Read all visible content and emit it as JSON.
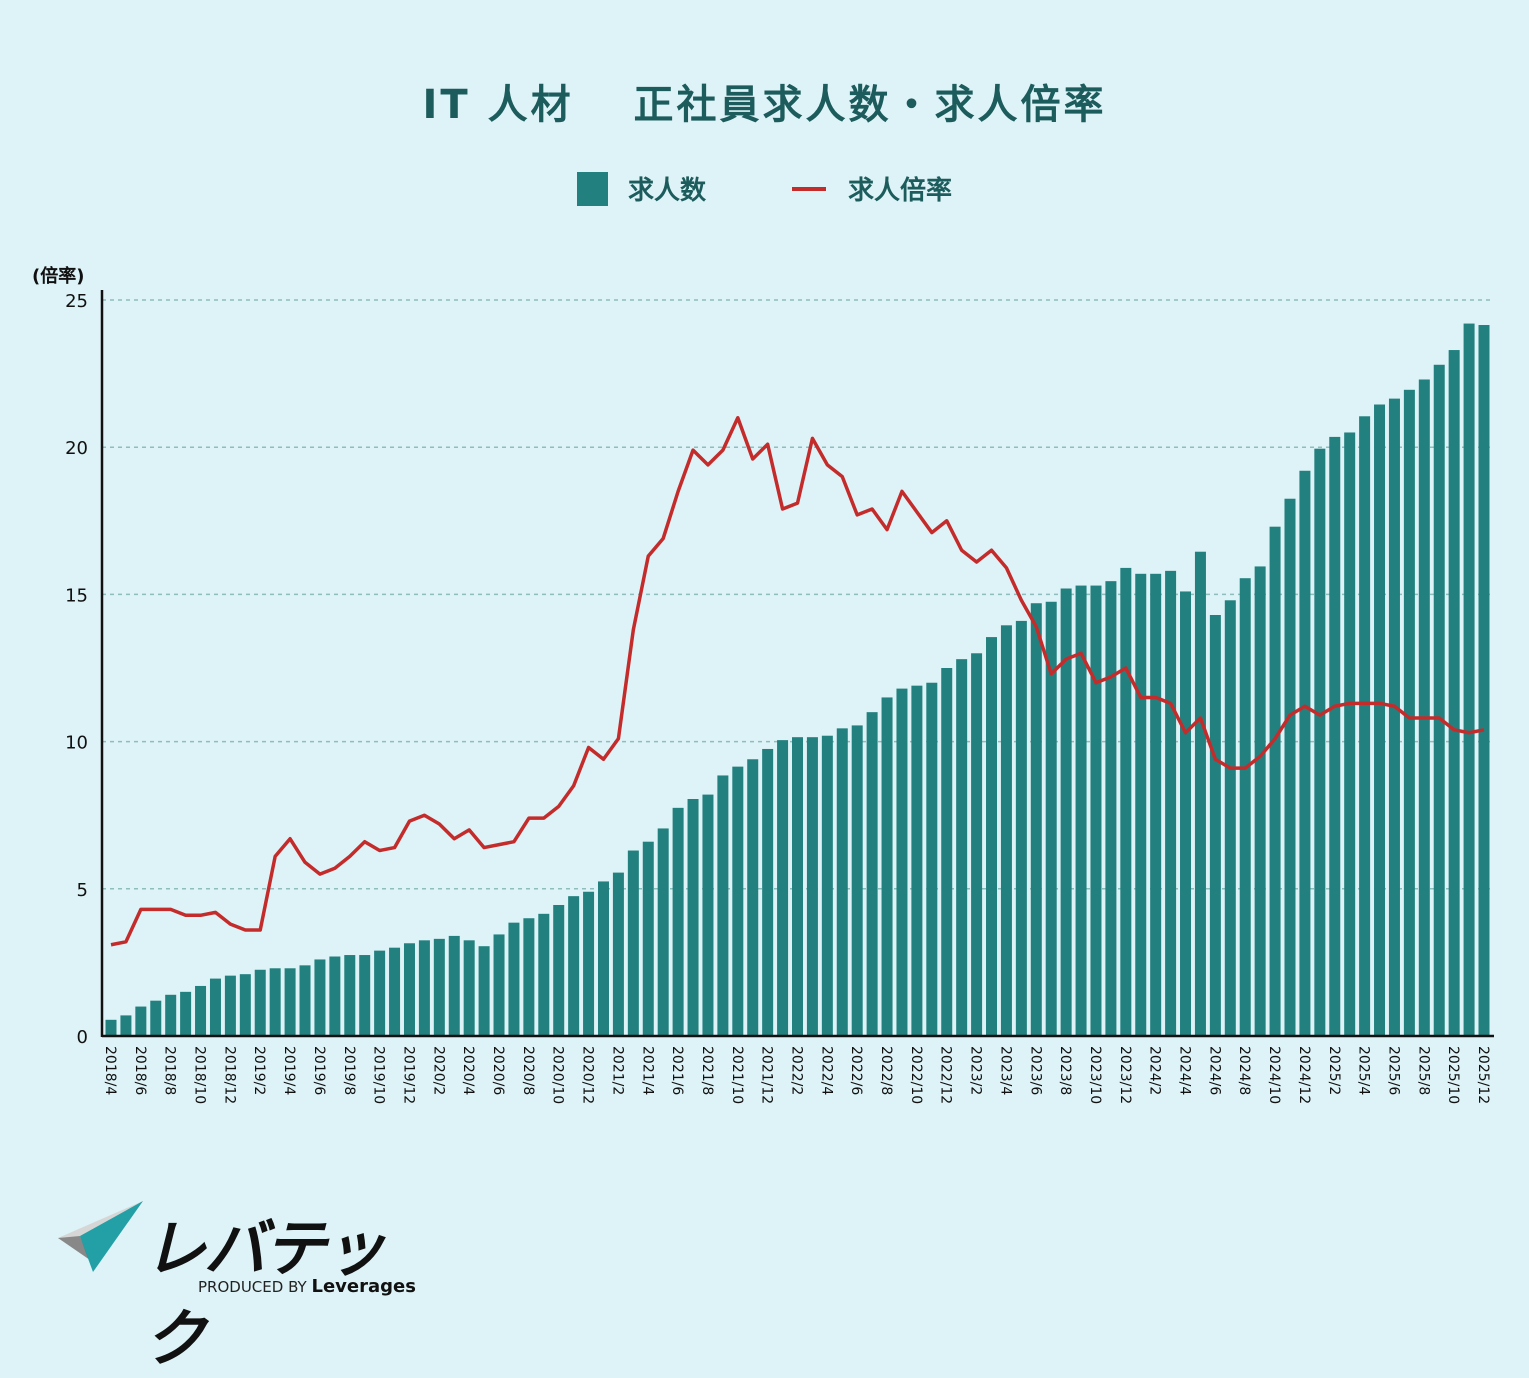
{
  "title": "IT 人材　 正社員求人数・求人倍率",
  "legend": {
    "bar_label": "求人数",
    "line_label": "求人倍率"
  },
  "axis": {
    "unit_label": "(倍率)"
  },
  "colors": {
    "background": "#def3f7",
    "bar": "#22807f",
    "line": "#c42c2c",
    "title": "#1d5c5c",
    "grid": "#8fbcbc"
  },
  "logo": {
    "brand": "レバテック",
    "produced_by": "PRODUCED BY",
    "company": "Leverages"
  },
  "chart_data": {
    "type": "bar+line",
    "title": "IT 人材　正社員求人数・求人倍率",
    "xlabel": "",
    "ylabel": "(倍率)",
    "ylim": [
      0,
      25
    ],
    "yticks": [
      0,
      5,
      10,
      15,
      20,
      25
    ],
    "grid": "horizontal dashed",
    "legend_position": "top-center",
    "tick_labels": [
      "2018/4",
      "2018/6",
      "2018/8",
      "2018/10",
      "2018/12",
      "2019/2",
      "2019/4",
      "2019/6",
      "2019/8",
      "2019/10",
      "2019/12",
      "2020/2",
      "2020/4",
      "2020/6",
      "2020/8",
      "2020/10",
      "2020/12",
      "2021/2",
      "2021/4",
      "2021/6",
      "2021/8",
      "2021/10",
      "2021/12",
      "2022/2",
      "2022/4",
      "2022/6",
      "2022/8",
      "2022/10",
      "2022/12",
      "2023/2",
      "2023/4",
      "2023/6",
      "2023/8",
      "2023/10",
      "2023/12",
      "2024/2",
      "2024/4",
      "2024/6",
      "2024/8",
      "2024/10",
      "2024/12",
      "2025/2",
      "2025/4",
      "2025/6",
      "2025/8",
      "2025/10",
      "2025/12"
    ],
    "categories": [
      "2018/4",
      "2018/5",
      "2018/6",
      "2018/7",
      "2018/8",
      "2018/9",
      "2018/10",
      "2018/11",
      "2018/12",
      "2019/1",
      "2019/2",
      "2019/3",
      "2019/4",
      "2019/5",
      "2019/6",
      "2019/7",
      "2019/8",
      "2019/9",
      "2019/10",
      "2019/11",
      "2019/12",
      "2020/1",
      "2020/2",
      "2020/3",
      "2020/4",
      "2020/5",
      "2020/6",
      "2020/7",
      "2020/8",
      "2020/9",
      "2020/10",
      "2020/11",
      "2020/12",
      "2021/1",
      "2021/2",
      "2021/3",
      "2021/4",
      "2021/5",
      "2021/6",
      "2021/7",
      "2021/8",
      "2021/9",
      "2021/10",
      "2021/11",
      "2021/12",
      "2022/1",
      "2022/2",
      "2022/3",
      "2022/4",
      "2022/5",
      "2022/6",
      "2022/7",
      "2022/8",
      "2022/9",
      "2022/10",
      "2022/11",
      "2022/12",
      "2023/1",
      "2023/2",
      "2023/3",
      "2023/4",
      "2023/5",
      "2023/6",
      "2023/7",
      "2023/8",
      "2023/9",
      "2023/10",
      "2023/11",
      "2023/12",
      "2024/1",
      "2024/2",
      "2024/3",
      "2024/4",
      "2024/5",
      "2024/6",
      "2024/7",
      "2024/8",
      "2024/9",
      "2024/10",
      "2024/11",
      "2024/12",
      "2025/1",
      "2025/2",
      "2025/3",
      "2025/4",
      "2025/5",
      "2025/6",
      "2025/7",
      "2025/8",
      "2025/9",
      "2025/10",
      "2025/11",
      "2025/12"
    ],
    "series": [
      {
        "name": "求人数",
        "type": "bar",
        "note": "relative index plotted on same scale",
        "values": [
          0.55,
          0.7,
          1.0,
          1.2,
          1.4,
          1.5,
          1.7,
          1.95,
          2.05,
          2.1,
          2.25,
          2.3,
          2.3,
          2.4,
          2.6,
          2.7,
          2.75,
          2.75,
          2.9,
          3.0,
          3.15,
          3.25,
          3.3,
          3.4,
          3.25,
          3.05,
          3.45,
          3.85,
          4.0,
          4.15,
          4.45,
          4.75,
          4.9,
          5.25,
          5.55,
          6.3,
          6.6,
          7.05,
          7.75,
          8.05,
          8.2,
          8.85,
          9.15,
          9.4,
          9.75,
          10.05,
          10.15,
          10.15,
          10.2,
          10.45,
          10.55,
          11.0,
          11.5,
          11.8,
          11.9,
          12.0,
          12.5,
          12.8,
          13.0,
          13.55,
          13.95,
          14.1,
          14.7,
          14.75,
          15.2,
          15.3,
          15.3,
          15.45,
          15.9,
          15.7,
          15.7,
          15.8,
          15.1,
          16.45,
          14.3,
          14.8,
          15.55,
          15.95,
          17.3,
          18.25,
          19.2,
          19.95,
          20.35,
          20.5,
          21.05,
          21.45,
          21.65,
          21.95,
          22.3,
          22.8,
          23.3,
          24.2,
          24.15
        ]
      },
      {
        "name": "求人倍率",
        "type": "line",
        "values": [
          3.1,
          3.2,
          4.3,
          4.3,
          4.3,
          4.1,
          4.1,
          4.2,
          3.8,
          3.6,
          3.6,
          6.1,
          6.7,
          5.9,
          5.5,
          5.7,
          6.1,
          6.6,
          6.3,
          6.4,
          7.3,
          7.5,
          7.2,
          6.7,
          7.0,
          6.4,
          6.5,
          6.6,
          7.4,
          7.4,
          7.8,
          8.5,
          9.8,
          9.4,
          10.1,
          13.8,
          16.3,
          16.9,
          18.5,
          19.9,
          19.4,
          19.9,
          21.0,
          19.6,
          20.1,
          17.9,
          18.1,
          20.3,
          19.4,
          19.0,
          17.7,
          17.9,
          17.2,
          18.5,
          17.8,
          17.1,
          17.5,
          16.5,
          16.1,
          16.5,
          15.9,
          14.8,
          13.9,
          12.3,
          12.8,
          13.0,
          12.0,
          12.2,
          12.5,
          11.5,
          11.5,
          11.3,
          10.3,
          10.8,
          9.4,
          9.1,
          9.1,
          9.5,
          10.1,
          10.9,
          11.2,
          10.9,
          11.2,
          11.3,
          11.3,
          11.3,
          11.2,
          10.8,
          10.8,
          10.8,
          10.4,
          10.3,
          10.4
        ]
      }
    ]
  }
}
